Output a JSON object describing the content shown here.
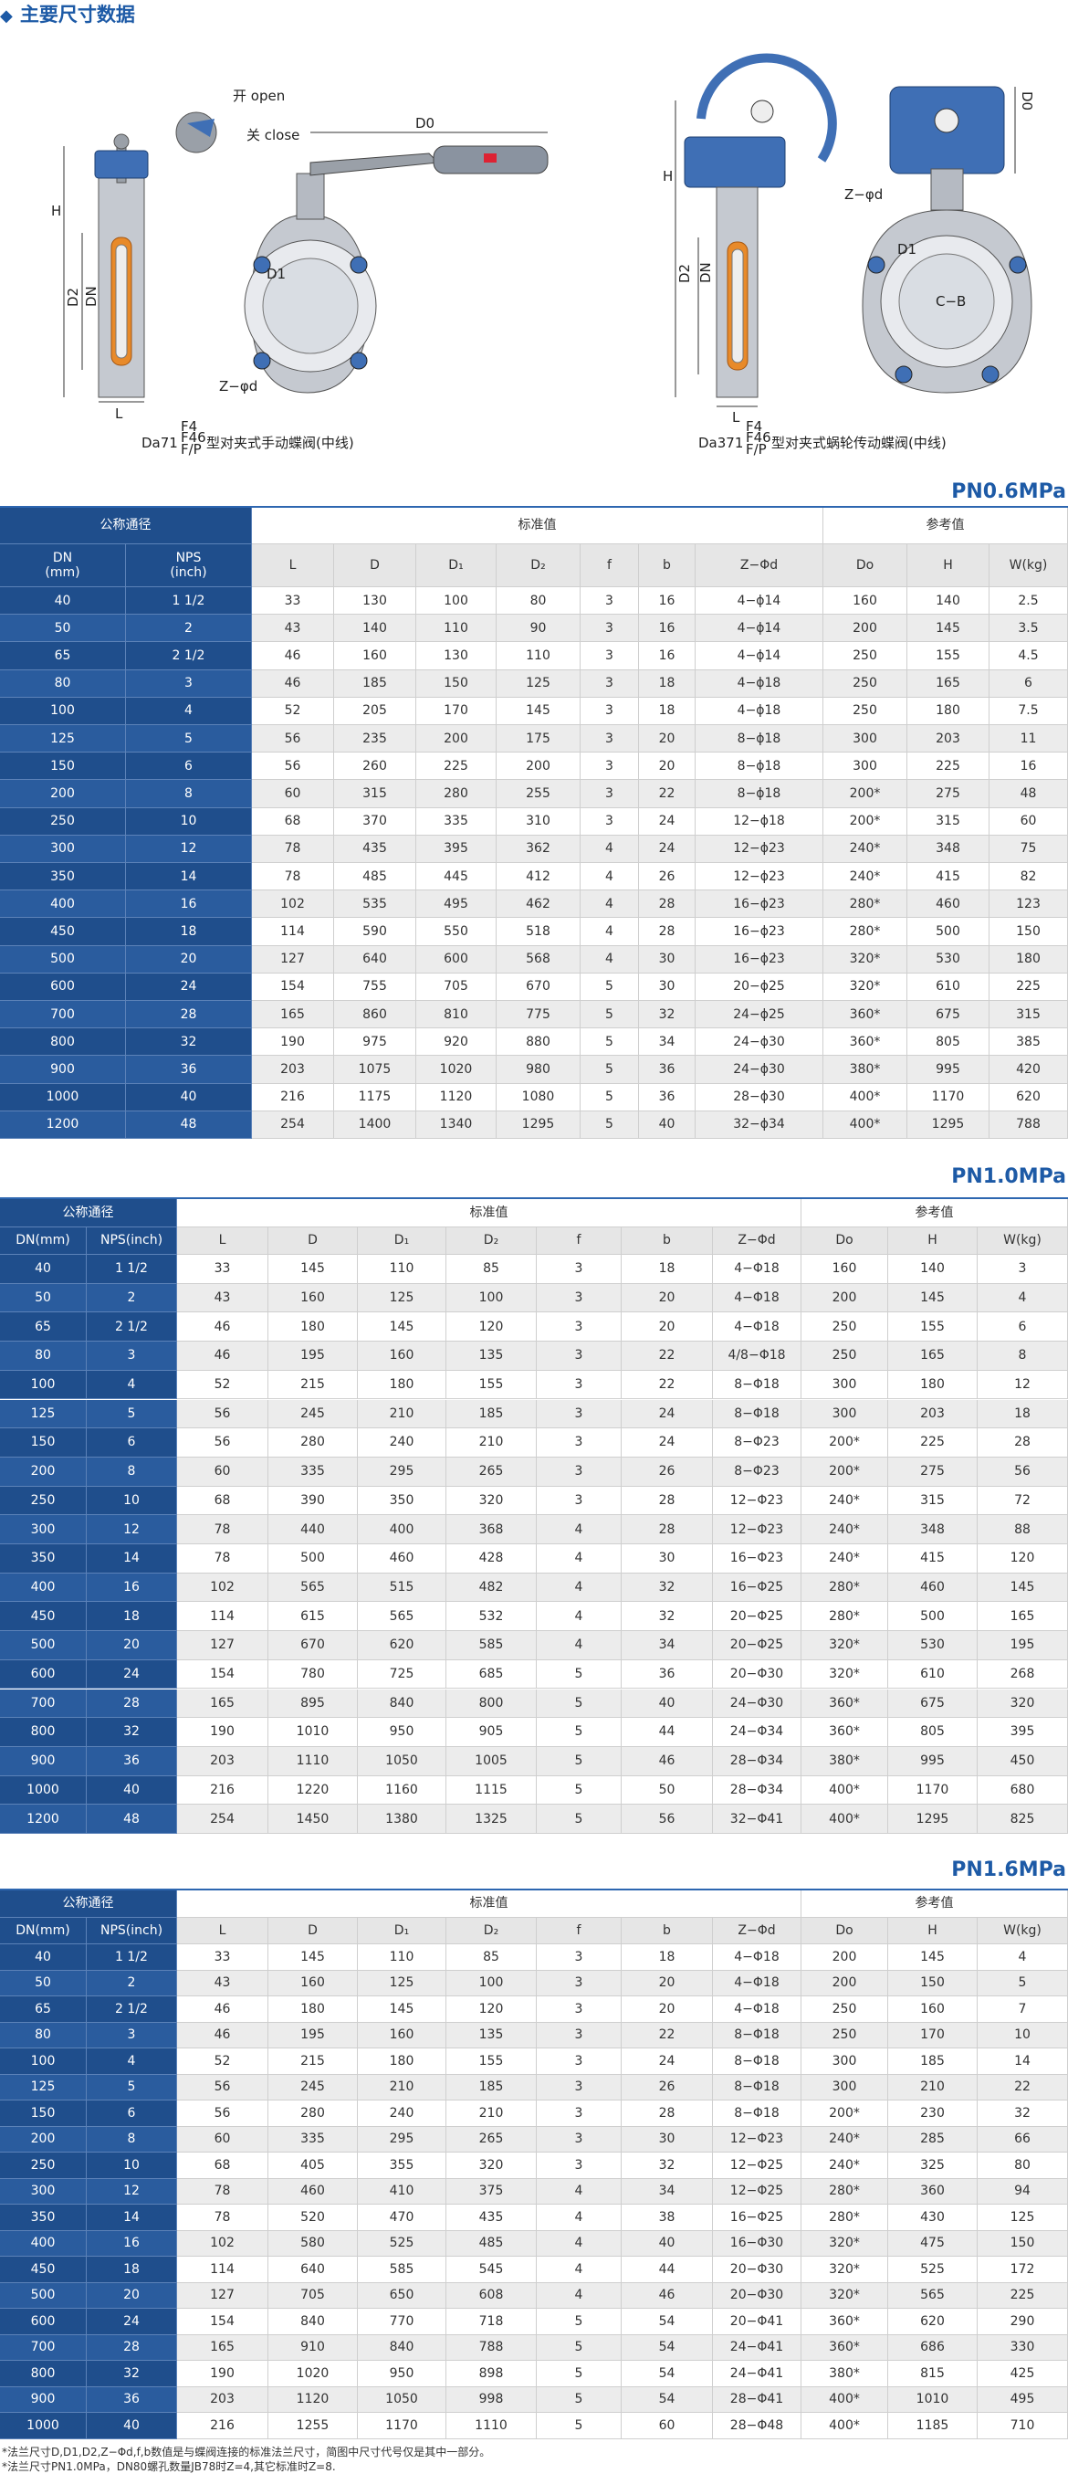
{
  "header": {
    "title": "主要尺寸数据"
  },
  "diagrams": [
    {
      "labels": {
        "open": "开 open",
        "close": "关 close",
        "d0": "D0",
        "h": "H",
        "d2": "D2",
        "dn": "DN",
        "l": "L",
        "d1": "D1",
        "bolt": "Z−φd"
      },
      "caption": {
        "model": "Da71",
        "materials": [
          "F4",
          "F46",
          "F/P"
        ],
        "text": "型对夹式手动蝶阀(中线)"
      }
    },
    {
      "labels": {
        "h": "H",
        "d2": "D2",
        "dn": "DN",
        "l": "L",
        "bolt": "Z−φd",
        "d0": "D0",
        "d1": "D1",
        "cb": "C−B"
      },
      "caption": {
        "model": "Da371",
        "materials": [
          "F4",
          "F46",
          "F/P"
        ],
        "text": "型对夹式蜗轮传动蝶阀(中线)"
      }
    }
  ],
  "tables": [
    {
      "title": "PN0.6MPa",
      "groups": [
        "公称通径",
        "标准值",
        "参考值"
      ],
      "columns": [
        "DN\n(mm)",
        "NPS\n(inch)",
        "L",
        "D",
        "D₁",
        "D₂",
        "f",
        "b",
        "Z−Φd",
        "Do",
        "H",
        "W(kg)"
      ],
      "rows": [
        [
          "40",
          "1 1/2",
          "33",
          "130",
          "100",
          "80",
          "3",
          "16",
          "4−ϕ14",
          "160",
          "140",
          "2.5"
        ],
        [
          "50",
          "2",
          "43",
          "140",
          "110",
          "90",
          "3",
          "16",
          "4−ϕ14",
          "200",
          "145",
          "3.5"
        ],
        [
          "65",
          "2 1/2",
          "46",
          "160",
          "130",
          "110",
          "3",
          "16",
          "4−ϕ14",
          "250",
          "155",
          "4.5"
        ],
        [
          "80",
          "3",
          "46",
          "185",
          "150",
          "125",
          "3",
          "18",
          "4−ϕ18",
          "250",
          "165",
          "6"
        ],
        [
          "100",
          "4",
          "52",
          "205",
          "170",
          "145",
          "3",
          "18",
          "4−ϕ18",
          "250",
          "180",
          "7.5"
        ],
        [
          "125",
          "5",
          "56",
          "235",
          "200",
          "175",
          "3",
          "20",
          "8−ϕ18",
          "300",
          "203",
          "11"
        ],
        [
          "150",
          "6",
          "56",
          "260",
          "225",
          "200",
          "3",
          "20",
          "8−ϕ18",
          "300",
          "225",
          "16"
        ],
        [
          "200",
          "8",
          "60",
          "315",
          "280",
          "255",
          "3",
          "22",
          "8−ϕ18",
          "200*",
          "275",
          "48"
        ],
        [
          "250",
          "10",
          "68",
          "370",
          "335",
          "310",
          "3",
          "24",
          "12−ϕ18",
          "200*",
          "315",
          "60"
        ],
        [
          "300",
          "12",
          "78",
          "435",
          "395",
          "362",
          "4",
          "24",
          "12−ϕ23",
          "240*",
          "348",
          "75"
        ],
        [
          "350",
          "14",
          "78",
          "485",
          "445",
          "412",
          "4",
          "26",
          "12−ϕ23",
          "240*",
          "415",
          "82"
        ],
        [
          "400",
          "16",
          "102",
          "535",
          "495",
          "462",
          "4",
          "28",
          "16−ϕ23",
          "280*",
          "460",
          "123"
        ],
        [
          "450",
          "18",
          "114",
          "590",
          "550",
          "518",
          "4",
          "28",
          "16−ϕ23",
          "280*",
          "500",
          "150"
        ],
        [
          "500",
          "20",
          "127",
          "640",
          "600",
          "568",
          "4",
          "30",
          "16−ϕ23",
          "320*",
          "530",
          "180"
        ],
        [
          "600",
          "24",
          "154",
          "755",
          "705",
          "670",
          "5",
          "30",
          "20−ϕ25",
          "320*",
          "610",
          "225"
        ],
        [
          "700",
          "28",
          "165",
          "860",
          "810",
          "775",
          "5",
          "32",
          "24−ϕ25",
          "360*",
          "675",
          "315"
        ],
        [
          "800",
          "32",
          "190",
          "975",
          "920",
          "880",
          "5",
          "34",
          "24−ϕ30",
          "360*",
          "805",
          "385"
        ],
        [
          "900",
          "36",
          "203",
          "1075",
          "1020",
          "980",
          "5",
          "36",
          "24−ϕ30",
          "380*",
          "995",
          "420"
        ],
        [
          "1000",
          "40",
          "216",
          "1175",
          "1120",
          "1080",
          "5",
          "36",
          "28−ϕ30",
          "400*",
          "1170",
          "620"
        ],
        [
          "1200",
          "48",
          "254",
          "1400",
          "1340",
          "1295",
          "5",
          "40",
          "32−ϕ34",
          "400*",
          "1295",
          "788"
        ]
      ]
    },
    {
      "title": "PN1.0MPa",
      "groups": [
        "公称通径",
        "标准值",
        "参考值"
      ],
      "columns": [
        "DN(mm)",
        "NPS(inch)",
        "L",
        "D",
        "D₁",
        "D₂",
        "f",
        "b",
        "Z−Φd",
        "Do",
        "H",
        "W(kg)"
      ],
      "rows": [
        [
          "40",
          "1 1/2",
          "33",
          "145",
          "110",
          "85",
          "3",
          "18",
          "4−Φ18",
          "160",
          "140",
          "3"
        ],
        [
          "50",
          "2",
          "43",
          "160",
          "125",
          "100",
          "3",
          "20",
          "4−Φ18",
          "200",
          "145",
          "4"
        ],
        [
          "65",
          "2 1/2",
          "46",
          "180",
          "145",
          "120",
          "3",
          "20",
          "4−Φ18",
          "250",
          "155",
          "6"
        ],
        [
          "80",
          "3",
          "46",
          "195",
          "160",
          "135",
          "3",
          "22",
          "4/8−Φ18",
          "250",
          "165",
          "8"
        ],
        [
          "100",
          "4",
          "52",
          "215",
          "180",
          "155",
          "3",
          "22",
          "8−Φ18",
          "300",
          "180",
          "12"
        ],
        [
          "125",
          "5",
          "56",
          "245",
          "210",
          "185",
          "3",
          "24",
          "8−Φ18",
          "300",
          "203",
          "18"
        ],
        [
          "150",
          "6",
          "56",
          "280",
          "240",
          "210",
          "3",
          "24",
          "8−Φ23",
          "200*",
          "225",
          "28"
        ],
        [
          "200",
          "8",
          "60",
          "335",
          "295",
          "265",
          "3",
          "26",
          "8−Φ23",
          "200*",
          "275",
          "56"
        ],
        [
          "250",
          "10",
          "68",
          "390",
          "350",
          "320",
          "3",
          "28",
          "12−Φ23",
          "240*",
          "315",
          "72"
        ],
        [
          "300",
          "12",
          "78",
          "440",
          "400",
          "368",
          "4",
          "28",
          "12−Φ23",
          "240*",
          "348",
          "88"
        ],
        [
          "350",
          "14",
          "78",
          "500",
          "460",
          "428",
          "4",
          "30",
          "16−Φ23",
          "240*",
          "415",
          "120"
        ],
        [
          "400",
          "16",
          "102",
          "565",
          "515",
          "482",
          "4",
          "32",
          "16−Φ25",
          "280*",
          "460",
          "145"
        ],
        [
          "450",
          "18",
          "114",
          "615",
          "565",
          "532",
          "4",
          "32",
          "20−Φ25",
          "280*",
          "500",
          "165"
        ],
        [
          "500",
          "20",
          "127",
          "670",
          "620",
          "585",
          "4",
          "34",
          "20−Φ25",
          "320*",
          "530",
          "195"
        ],
        [
          "600",
          "24",
          "154",
          "780",
          "725",
          "685",
          "5",
          "36",
          "20−Φ30",
          "320*",
          "610",
          "268"
        ],
        [
          "700",
          "28",
          "165",
          "895",
          "840",
          "800",
          "5",
          "40",
          "24−Φ30",
          "360*",
          "675",
          "320"
        ],
        [
          "800",
          "32",
          "190",
          "1010",
          "950",
          "905",
          "5",
          "44",
          "24−Φ34",
          "360*",
          "805",
          "395"
        ],
        [
          "900",
          "36",
          "203",
          "1110",
          "1050",
          "1005",
          "5",
          "46",
          "28−Φ34",
          "380*",
          "995",
          "450"
        ],
        [
          "1000",
          "40",
          "216",
          "1220",
          "1160",
          "1115",
          "5",
          "50",
          "28−Φ34",
          "400*",
          "1170",
          "680"
        ],
        [
          "1200",
          "48",
          "254",
          "1450",
          "1380",
          "1325",
          "5",
          "56",
          "32−Φ41",
          "400*",
          "1295",
          "825"
        ]
      ]
    },
    {
      "title": "PN1.6MPa",
      "groups": [
        "公称通径",
        "标准值",
        "参考值"
      ],
      "columns": [
        "DN(mm)",
        "NPS(inch)",
        "L",
        "D",
        "D₁",
        "D₂",
        "f",
        "b",
        "Z−Φd",
        "Do",
        "H",
        "W(kg)"
      ],
      "rows": [
        [
          "40",
          "1 1/2",
          "33",
          "145",
          "110",
          "85",
          "3",
          "18",
          "4−Φ18",
          "200",
          "145",
          "4"
        ],
        [
          "50",
          "2",
          "43",
          "160",
          "125",
          "100",
          "3",
          "20",
          "4−Φ18",
          "200",
          "150",
          "5"
        ],
        [
          "65",
          "2 1/2",
          "46",
          "180",
          "145",
          "120",
          "3",
          "20",
          "4−Φ18",
          "250",
          "160",
          "7"
        ],
        [
          "80",
          "3",
          "46",
          "195",
          "160",
          "135",
          "3",
          "22",
          "8−Φ18",
          "250",
          "170",
          "10"
        ],
        [
          "100",
          "4",
          "52",
          "215",
          "180",
          "155",
          "3",
          "24",
          "8−Φ18",
          "300",
          "185",
          "14"
        ],
        [
          "125",
          "5",
          "56",
          "245",
          "210",
          "185",
          "3",
          "26",
          "8−Φ18",
          "300",
          "210",
          "22"
        ],
        [
          "150",
          "6",
          "56",
          "280",
          "240",
          "210",
          "3",
          "28",
          "8−Φ18",
          "200*",
          "230",
          "32"
        ],
        [
          "200",
          "8",
          "60",
          "335",
          "295",
          "265",
          "3",
          "30",
          "12−Φ23",
          "240*",
          "285",
          "66"
        ],
        [
          "250",
          "10",
          "68",
          "405",
          "355",
          "320",
          "3",
          "32",
          "12−Φ25",
          "240*",
          "325",
          "80"
        ],
        [
          "300",
          "12",
          "78",
          "460",
          "410",
          "375",
          "4",
          "34",
          "12−Φ25",
          "280*",
          "360",
          "94"
        ],
        [
          "350",
          "14",
          "78",
          "520",
          "470",
          "435",
          "4",
          "38",
          "16−Φ25",
          "280*",
          "430",
          "125"
        ],
        [
          "400",
          "16",
          "102",
          "580",
          "525",
          "485",
          "4",
          "40",
          "16−Φ30",
          "320*",
          "475",
          "150"
        ],
        [
          "450",
          "18",
          "114",
          "640",
          "585",
          "545",
          "4",
          "44",
          "20−Φ30",
          "320*",
          "525",
          "172"
        ],
        [
          "500",
          "20",
          "127",
          "705",
          "650",
          "608",
          "4",
          "46",
          "20−Φ30",
          "320*",
          "565",
          "225"
        ],
        [
          "600",
          "24",
          "154",
          "840",
          "770",
          "718",
          "5",
          "54",
          "20−Φ41",
          "360*",
          "620",
          "290"
        ],
        [
          "700",
          "28",
          "165",
          "910",
          "840",
          "788",
          "5",
          "54",
          "24−Φ41",
          "360*",
          "686",
          "330"
        ],
        [
          "800",
          "32",
          "190",
          "1020",
          "950",
          "898",
          "5",
          "54",
          "24−Φ41",
          "380*",
          "815",
          "425"
        ],
        [
          "900",
          "36",
          "203",
          "1120",
          "1050",
          "998",
          "5",
          "54",
          "28−Φ41",
          "400*",
          "1010",
          "495"
        ],
        [
          "1000",
          "40",
          "216",
          "1255",
          "1170",
          "1110",
          "5",
          "60",
          "28−Φ48",
          "400*",
          "1185",
          "710"
        ]
      ]
    }
  ],
  "notes": [
    "*法兰尺寸D,D1,D2,Z−Φd,f,b数值是与蝶阀连接的标准法兰尺寸，简图中尺寸代号仅是其中一部分。",
    "*法兰尺寸PN1.0MPa，DN80螺孔数量JB78时Z=4,其它标准时Z=8."
  ]
}
